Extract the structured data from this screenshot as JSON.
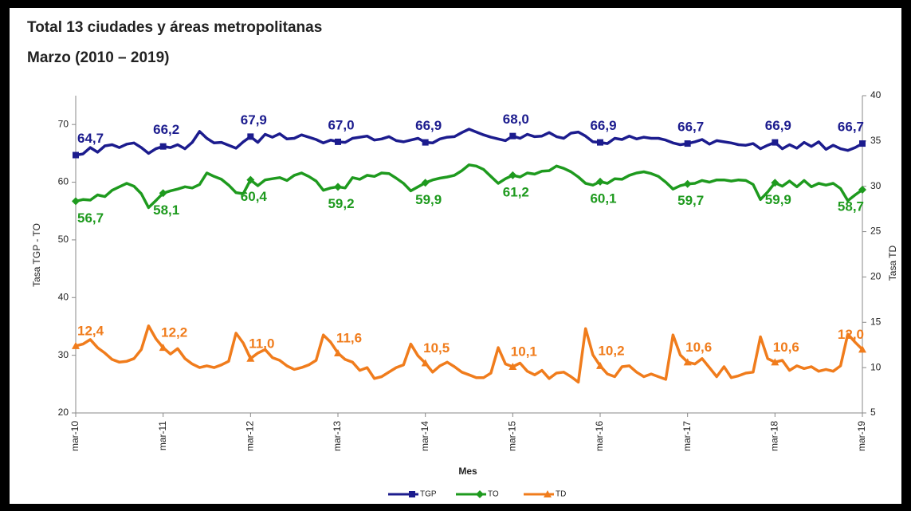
{
  "chart_data": {
    "type": "line",
    "title": "Total 13 ciudades y áreas metropolitanas",
    "subtitle": "Marzo (2010 – 2019)",
    "y_label": "Tasa TGP - TO",
    "y2_label": "Tasa TD",
    "x_label": "Mes",
    "ylim": [
      20,
      75
    ],
    "yticks": [
      20,
      30,
      40,
      50,
      60,
      70
    ],
    "y2lim": [
      5,
      40
    ],
    "y2ticks": [
      5,
      10,
      15,
      20,
      25,
      30,
      35,
      40
    ],
    "grid": false,
    "legend": "bottom",
    "categories": [
      "mar-10",
      null,
      null,
      null,
      null,
      null,
      null,
      null,
      null,
      null,
      null,
      null,
      "mar-11",
      null,
      null,
      null,
      null,
      null,
      null,
      null,
      null,
      null,
      null,
      null,
      "mar-12",
      null,
      null,
      null,
      null,
      null,
      null,
      null,
      null,
      null,
      null,
      null,
      "mar-13",
      null,
      null,
      null,
      null,
      null,
      null,
      null,
      null,
      null,
      null,
      null,
      "mar-14",
      null,
      null,
      null,
      null,
      null,
      null,
      null,
      null,
      null,
      null,
      null,
      "mar-15",
      null,
      null,
      null,
      null,
      null,
      null,
      null,
      null,
      null,
      null,
      null,
      "mar-16",
      null,
      null,
      null,
      null,
      null,
      null,
      null,
      null,
      null,
      null,
      null,
      "mar-17",
      null,
      null,
      null,
      null,
      null,
      null,
      null,
      null,
      null,
      null,
      null,
      "mar-18",
      null,
      null,
      null,
      null,
      null,
      null,
      null,
      null,
      null,
      null,
      null,
      "mar-19"
    ],
    "series": [
      {
        "name": "TGP",
        "color": "#1c1c8e",
        "marker": "square",
        "values": [
          64.7,
          64.9,
          66.0,
          65.2,
          66.3,
          66.5,
          66.0,
          66.6,
          66.8,
          66.0,
          65.0,
          65.8,
          66.2,
          66.0,
          66.5,
          65.8,
          66.9,
          68.8,
          67.6,
          66.8,
          66.9,
          66.4,
          65.9,
          67.0,
          67.9,
          66.9,
          68.3,
          67.8,
          68.4,
          67.5,
          67.6,
          68.2,
          67.8,
          67.4,
          66.8,
          67.3,
          67.0,
          66.9,
          67.6,
          67.8,
          68.0,
          67.3,
          67.5,
          67.9,
          67.2,
          67.0,
          67.3,
          67.6,
          66.9,
          66.8,
          67.5,
          67.8,
          67.9,
          68.6,
          69.2,
          68.7,
          68.2,
          67.8,
          67.5,
          67.2,
          68.0,
          67.6,
          68.3,
          67.9,
          68.0,
          68.6,
          67.9,
          67.6,
          68.5,
          68.7,
          68.0,
          67.0,
          66.9,
          66.7,
          67.6,
          67.4,
          68.0,
          67.5,
          67.8,
          67.6,
          67.6,
          67.3,
          66.8,
          66.5,
          66.7,
          67.0,
          67.4,
          66.6,
          67.2,
          67.0,
          66.8,
          66.5,
          66.4,
          66.7,
          65.8,
          66.4,
          66.9,
          65.8,
          66.5,
          65.9,
          66.9,
          66.2,
          67.0,
          65.7,
          66.4,
          65.8,
          65.5,
          66.0,
          66.7
        ],
        "value_labels": [
          "64,7",
          null,
          null,
          null,
          null,
          null,
          null,
          null,
          null,
          null,
          null,
          null,
          "66,2",
          null,
          null,
          null,
          null,
          null,
          null,
          null,
          null,
          null,
          null,
          null,
          "67,9",
          null,
          null,
          null,
          null,
          null,
          null,
          null,
          null,
          null,
          null,
          null,
          "67,0",
          null,
          null,
          null,
          null,
          null,
          null,
          null,
          null,
          null,
          null,
          null,
          "66,9",
          null,
          null,
          null,
          null,
          null,
          null,
          null,
          null,
          null,
          null,
          null,
          "68,0",
          null,
          null,
          null,
          null,
          null,
          null,
          null,
          null,
          null,
          null,
          null,
          "66,9",
          null,
          null,
          null,
          null,
          null,
          null,
          null,
          null,
          null,
          null,
          null,
          "66,7",
          null,
          null,
          null,
          null,
          null,
          null,
          null,
          null,
          null,
          null,
          null,
          "66,9",
          null,
          null,
          null,
          null,
          null,
          null,
          null,
          null,
          null,
          null,
          null,
          "66,7"
        ]
      },
      {
        "name": "TO",
        "color": "#1e9a1e",
        "marker": "diamond",
        "values": [
          56.7,
          57.0,
          56.9,
          57.8,
          57.5,
          58.6,
          59.2,
          59.8,
          59.3,
          58.0,
          55.6,
          56.8,
          58.1,
          58.5,
          58.8,
          59.2,
          59.0,
          59.6,
          61.6,
          61.0,
          60.5,
          59.5,
          58.2,
          58.0,
          60.4,
          59.4,
          60.4,
          60.6,
          60.8,
          60.3,
          61.2,
          61.6,
          61.0,
          60.2,
          58.6,
          59.0,
          59.2,
          59.0,
          60.8,
          60.5,
          61.2,
          61.0,
          61.6,
          61.5,
          60.7,
          59.8,
          58.5,
          59.2,
          59.9,
          60.4,
          60.7,
          60.9,
          61.2,
          62.0,
          63.0,
          62.8,
          62.2,
          61.0,
          59.8,
          60.6,
          61.2,
          60.9,
          61.6,
          61.4,
          61.9,
          62.0,
          62.8,
          62.4,
          61.8,
          60.9,
          59.8,
          59.5,
          60.1,
          59.8,
          60.6,
          60.5,
          61.2,
          61.6,
          61.8,
          61.5,
          61.0,
          60.0,
          58.8,
          59.4,
          59.7,
          59.8,
          60.3,
          60.0,
          60.4,
          60.4,
          60.2,
          60.4,
          60.3,
          59.6,
          57.0,
          58.3,
          59.9,
          59.3,
          60.2,
          59.2,
          60.3,
          59.2,
          59.8,
          59.5,
          59.8,
          58.9,
          56.8,
          57.8,
          58.7
        ],
        "value_labels": [
          "56,7",
          null,
          null,
          null,
          null,
          null,
          null,
          null,
          null,
          null,
          null,
          null,
          "58,1",
          null,
          null,
          null,
          null,
          null,
          null,
          null,
          null,
          null,
          null,
          null,
          "60,4",
          null,
          null,
          null,
          null,
          null,
          null,
          null,
          null,
          null,
          null,
          null,
          "59,2",
          null,
          null,
          null,
          null,
          null,
          null,
          null,
          null,
          null,
          null,
          null,
          "59,9",
          null,
          null,
          null,
          null,
          null,
          null,
          null,
          null,
          null,
          null,
          null,
          "61,2",
          null,
          null,
          null,
          null,
          null,
          null,
          null,
          null,
          null,
          null,
          null,
          "60,1",
          null,
          null,
          null,
          null,
          null,
          null,
          null,
          null,
          null,
          null,
          null,
          "59,7",
          null,
          null,
          null,
          null,
          null,
          null,
          null,
          null,
          null,
          null,
          null,
          "59,9",
          null,
          null,
          null,
          null,
          null,
          null,
          null,
          null,
          null,
          null,
          null,
          "58,7"
        ]
      },
      {
        "name": "TD",
        "color": "#f07c1c",
        "marker": "triangle",
        "axis": "y2",
        "values": [
          12.4,
          12.6,
          13.1,
          12.2,
          11.6,
          10.9,
          10.6,
          10.7,
          11.0,
          12.0,
          14.6,
          13.2,
          12.2,
          11.5,
          12.1,
          11.0,
          10.4,
          10.0,
          10.2,
          10.0,
          10.3,
          10.7,
          13.8,
          12.7,
          11.0,
          11.6,
          12.0,
          11.1,
          10.8,
          10.2,
          9.8,
          10.0,
          10.3,
          10.8,
          13.6,
          12.8,
          11.6,
          10.9,
          10.6,
          9.7,
          10.0,
          8.8,
          9.0,
          9.5,
          10.0,
          10.3,
          12.6,
          11.3,
          10.5,
          9.5,
          10.2,
          10.6,
          10.1,
          9.5,
          9.2,
          8.9,
          8.9,
          9.4,
          12.2,
          10.4,
          10.1,
          10.5,
          9.6,
          9.2,
          9.7,
          8.8,
          9.4,
          9.5,
          9.0,
          8.4,
          14.3,
          11.4,
          10.2,
          9.3,
          9.0,
          10.1,
          10.2,
          9.5,
          9.0,
          9.3,
          9.0,
          8.7,
          13.6,
          11.4,
          10.6,
          10.4,
          11.0,
          10.0,
          9.0,
          10.1,
          8.9,
          9.1,
          9.4,
          9.5,
          13.4,
          11.0,
          10.6,
          10.8,
          9.7,
          10.2,
          9.9,
          10.1,
          9.6,
          9.8,
          9.6,
          10.2,
          13.7,
          12.8,
          12.0
        ],
        "value_labels": [
          "12,4",
          null,
          null,
          null,
          null,
          null,
          null,
          null,
          null,
          null,
          null,
          null,
          "12,2",
          null,
          null,
          null,
          null,
          null,
          null,
          null,
          null,
          null,
          null,
          null,
          "11,0",
          null,
          null,
          null,
          null,
          null,
          null,
          null,
          null,
          null,
          null,
          null,
          "11,6",
          null,
          null,
          null,
          null,
          null,
          null,
          null,
          null,
          null,
          null,
          null,
          "10,5",
          null,
          null,
          null,
          null,
          null,
          null,
          null,
          null,
          null,
          null,
          null,
          "10,1",
          null,
          null,
          null,
          null,
          null,
          null,
          null,
          null,
          null,
          null,
          null,
          "10,2",
          null,
          null,
          null,
          null,
          null,
          null,
          null,
          null,
          null,
          null,
          null,
          "10,6",
          null,
          null,
          null,
          null,
          null,
          null,
          null,
          null,
          null,
          null,
          null,
          "10,6",
          null,
          null,
          null,
          null,
          null,
          null,
          null,
          null,
          null,
          null,
          null,
          "12,0"
        ]
      }
    ]
  }
}
